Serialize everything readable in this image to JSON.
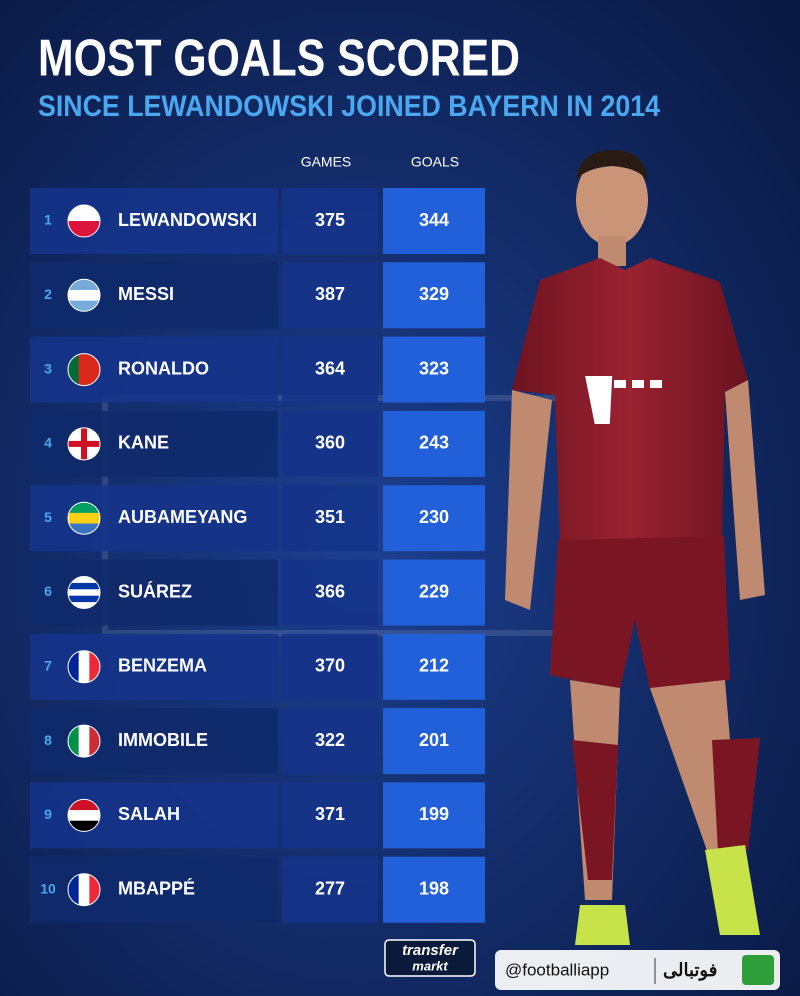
{
  "header": {
    "title": "MOST GOALS SCORED",
    "subtitle": "SINCE LEWANDOWSKI JOINED BAYERN IN 2014"
  },
  "table": {
    "columns": [
      "GAMES",
      "GOALS"
    ],
    "rows": [
      [
        1,
        "LEWANDOWSKI",
        375,
        344
      ],
      [
        2,
        "MESSI",
        387,
        329
      ],
      [
        3,
        "RONALDO",
        364,
        323
      ],
      [
        4,
        "KANE",
        360,
        243
      ],
      [
        5,
        "AUBAMEYANG",
        351,
        230
      ],
      [
        6,
        "SUÁREZ",
        366,
        229
      ],
      [
        7,
        "BENZEMA",
        370,
        212
      ],
      [
        8,
        "IMMOBILE",
        322,
        201
      ],
      [
        9,
        "SALAH",
        371,
        199
      ],
      [
        10,
        "MBAPPÉ",
        277,
        198
      ]
    ]
  },
  "footer": {
    "logo_top": "transfer",
    "logo_bottom": "markt",
    "handle": "@footballiapp",
    "brand": "فوتبالی"
  }
}
